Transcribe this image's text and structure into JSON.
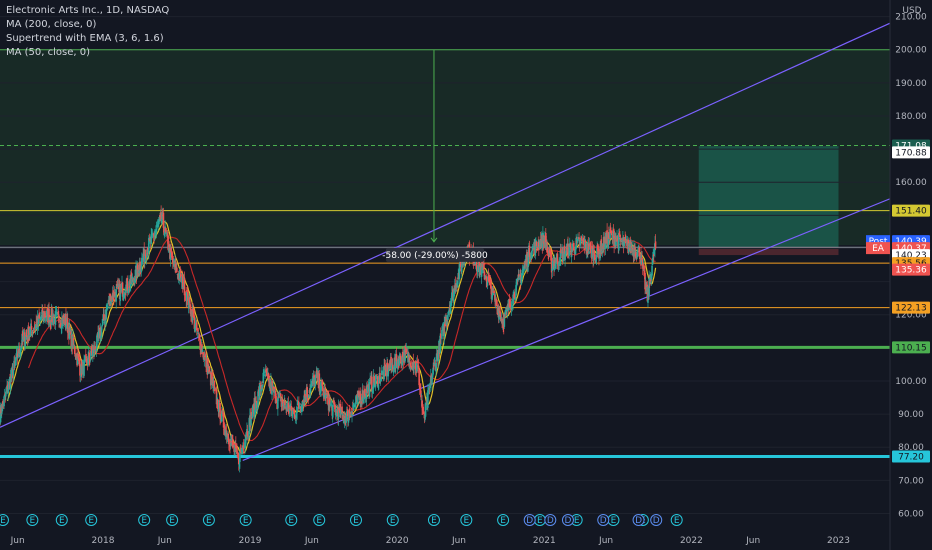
{
  "legend": {
    "title": "Electronic Arts Inc., 1D, NASDAQ",
    "ma200": "MA (200, close, 0)",
    "supertrend": "Supertrend with EMA (3, 6, 1.6)",
    "ma50": "MA (50, close, 0)"
  },
  "currency": "USD",
  "measure_label": "-58.00 (-29.00%) -5800",
  "colors": {
    "background": "#131722",
    "up": "#26a69a",
    "down": "#ef5350",
    "ma_fast": "#e3c027",
    "ma_slow": "#c62828",
    "channel": "#7b61ff",
    "zone_fill": "#1e3a2a",
    "target_fill": "#1b5e50",
    "stop_fill": "#5a2a32",
    "support_green": "#4caf50",
    "support_teal": "#26c6da",
    "level_orange": "#f4a023",
    "level_yellow": "#d4c832"
  },
  "chart_data": {
    "type": "candlestick",
    "title": "Electronic Arts Inc., 1D, NASDAQ",
    "ylim": [
      55,
      215
    ],
    "y_ticks": [
      60,
      70,
      80,
      90,
      100,
      110,
      120,
      130,
      140,
      150,
      160,
      170,
      180,
      190,
      200,
      210
    ],
    "y_tick_labels": [
      "60.00",
      "70.00",
      "80.00",
      "90.00",
      "100.00",
      "110.00",
      "120.00",
      "",
      "",
      "",
      "160.00",
      "",
      "180.00",
      "190.00",
      "200.00",
      "210.00"
    ],
    "x_ticks": [
      {
        "t": 2017.42,
        "label": "Jun"
      },
      {
        "t": 2018.0,
        "label": "2018"
      },
      {
        "t": 2018.42,
        "label": "Jun"
      },
      {
        "t": 2019.0,
        "label": "2019"
      },
      {
        "t": 2019.42,
        "label": "Jun"
      },
      {
        "t": 2020.0,
        "label": "2020"
      },
      {
        "t": 2020.42,
        "label": "Jun"
      },
      {
        "t": 2021.0,
        "label": "2021"
      },
      {
        "t": 2021.42,
        "label": "Jun"
      },
      {
        "t": 2022.0,
        "label": "2022"
      },
      {
        "t": 2022.42,
        "label": "Jun"
      },
      {
        "t": 2023.0,
        "label": "2023"
      }
    ],
    "xlim": [
      2017.3,
      2023.35
    ],
    "price_anchors": [
      [
        2017.3,
        90
      ],
      [
        2017.45,
        112
      ],
      [
        2017.6,
        120
      ],
      [
        2017.75,
        118
      ],
      [
        2017.85,
        103
      ],
      [
        2017.95,
        110
      ],
      [
        2018.05,
        125
      ],
      [
        2018.2,
        130
      ],
      [
        2018.3,
        140
      ],
      [
        2018.4,
        149
      ],
      [
        2018.47,
        136
      ],
      [
        2018.55,
        129
      ],
      [
        2018.65,
        113
      ],
      [
        2018.75,
        98
      ],
      [
        2018.82,
        87
      ],
      [
        2018.92,
        76
      ],
      [
        2019.0,
        88
      ],
      [
        2019.1,
        102
      ],
      [
        2019.18,
        95
      ],
      [
        2019.3,
        90
      ],
      [
        2019.45,
        101
      ],
      [
        2019.55,
        92
      ],
      [
        2019.65,
        89
      ],
      [
        2019.75,
        95
      ],
      [
        2019.85,
        100
      ],
      [
        2019.95,
        104
      ],
      [
        2020.05,
        108
      ],
      [
        2020.14,
        104
      ],
      [
        2020.18,
        88
      ],
      [
        2020.23,
        100
      ],
      [
        2020.35,
        122
      ],
      [
        2020.47,
        140
      ],
      [
        2020.6,
        132
      ],
      [
        2020.72,
        118
      ],
      [
        2020.8,
        127
      ],
      [
        2020.9,
        139
      ],
      [
        2021.0,
        143
      ],
      [
        2021.05,
        135
      ],
      [
        2021.15,
        139
      ],
      [
        2021.25,
        142
      ],
      [
        2021.35,
        138
      ],
      [
        2021.45,
        144
      ],
      [
        2021.55,
        141
      ],
      [
        2021.65,
        139
      ],
      [
        2021.7,
        125
      ],
      [
        2021.75,
        140
      ]
    ],
    "last_date": 2021.76,
    "horizontal_levels": [
      {
        "label": "200.00",
        "value": 200.0
      },
      {
        "label": "171.08",
        "value": 171.08
      },
      {
        "label": "170.88",
        "value": 170.88
      },
      {
        "label": "151.40",
        "value": 151.4
      },
      {
        "label": "140.37",
        "value": 140.37
      },
      {
        "label": "140.23",
        "value": 140.23
      },
      {
        "label": "135.56",
        "value": 135.56
      },
      {
        "label": "135.36",
        "value": 135.36
      },
      {
        "label": "122.13",
        "value": 122.13
      },
      {
        "label": "110.15",
        "value": 110.15
      },
      {
        "label": "77.20",
        "value": 77.2
      }
    ],
    "price_tags": [
      {
        "label": "171.08",
        "value": 171.08,
        "bg": "#1b5e50",
        "fg": "#ffffff"
      },
      {
        "label": "170.88",
        "value": 169.0,
        "bg": "#ffffff",
        "fg": "#131722"
      },
      {
        "label": "151.40",
        "value": 151.4,
        "bg": "#d4c832",
        "fg": "#131722"
      },
      {
        "label": "140.39",
        "value": 142.2,
        "bg": "#2962ff",
        "fg": "#ffffff",
        "prefix": "Post"
      },
      {
        "label": "140.37",
        "value": 140.1,
        "bg": "#ef5350",
        "fg": "#ffffff",
        "prefix": "EA"
      },
      {
        "label": "140.23",
        "value": 138.0,
        "bg": "#ffffff",
        "fg": "#131722"
      },
      {
        "label": "135.56",
        "value": 135.56,
        "bg": "#f4a023",
        "fg": "#131722"
      },
      {
        "label": "135.36",
        "value": 133.6,
        "bg": "#ef5350",
        "fg": "#ffffff"
      },
      {
        "label": "122.13",
        "value": 122.13,
        "bg": "#f4a023",
        "fg": "#131722"
      },
      {
        "label": "110.15",
        "value": 110.15,
        "bg": "#4caf50",
        "fg": "#131722"
      },
      {
        "label": "77.20",
        "value": 77.2,
        "bg": "#26c6da",
        "fg": "#131722"
      }
    ],
    "channel": {
      "lower": [
        [
          2018.95,
          76
        ],
        [
          2023.35,
          155
        ]
      ],
      "upper": [
        [
          2017.3,
          86
        ],
        [
          2023.35,
          208
        ]
      ]
    },
    "upper_zone": {
      "y0": 141,
      "y1": 200,
      "t0": 2017.3
    },
    "measure": {
      "t": 2020.25,
      "from": 200,
      "to": 142
    },
    "position": {
      "t0": 2022.05,
      "t1": 2023.0,
      "entry": 140.3,
      "target": 170.88,
      "stop": 138.0
    },
    "earnings_markers": [
      2017.32,
      2017.52,
      2017.72,
      2017.92,
      2018.28,
      2018.47,
      2018.72,
      2018.97,
      2019.28,
      2019.47,
      2019.72,
      2019.97,
      2020.25,
      2020.47,
      2020.72,
      2020.97,
      2021.22,
      2021.47,
      2021.67,
      2021.9
    ],
    "dividend_markers": [
      2020.86,
      2021.0,
      2021.12,
      2021.36,
      2021.6,
      2021.72
    ]
  }
}
